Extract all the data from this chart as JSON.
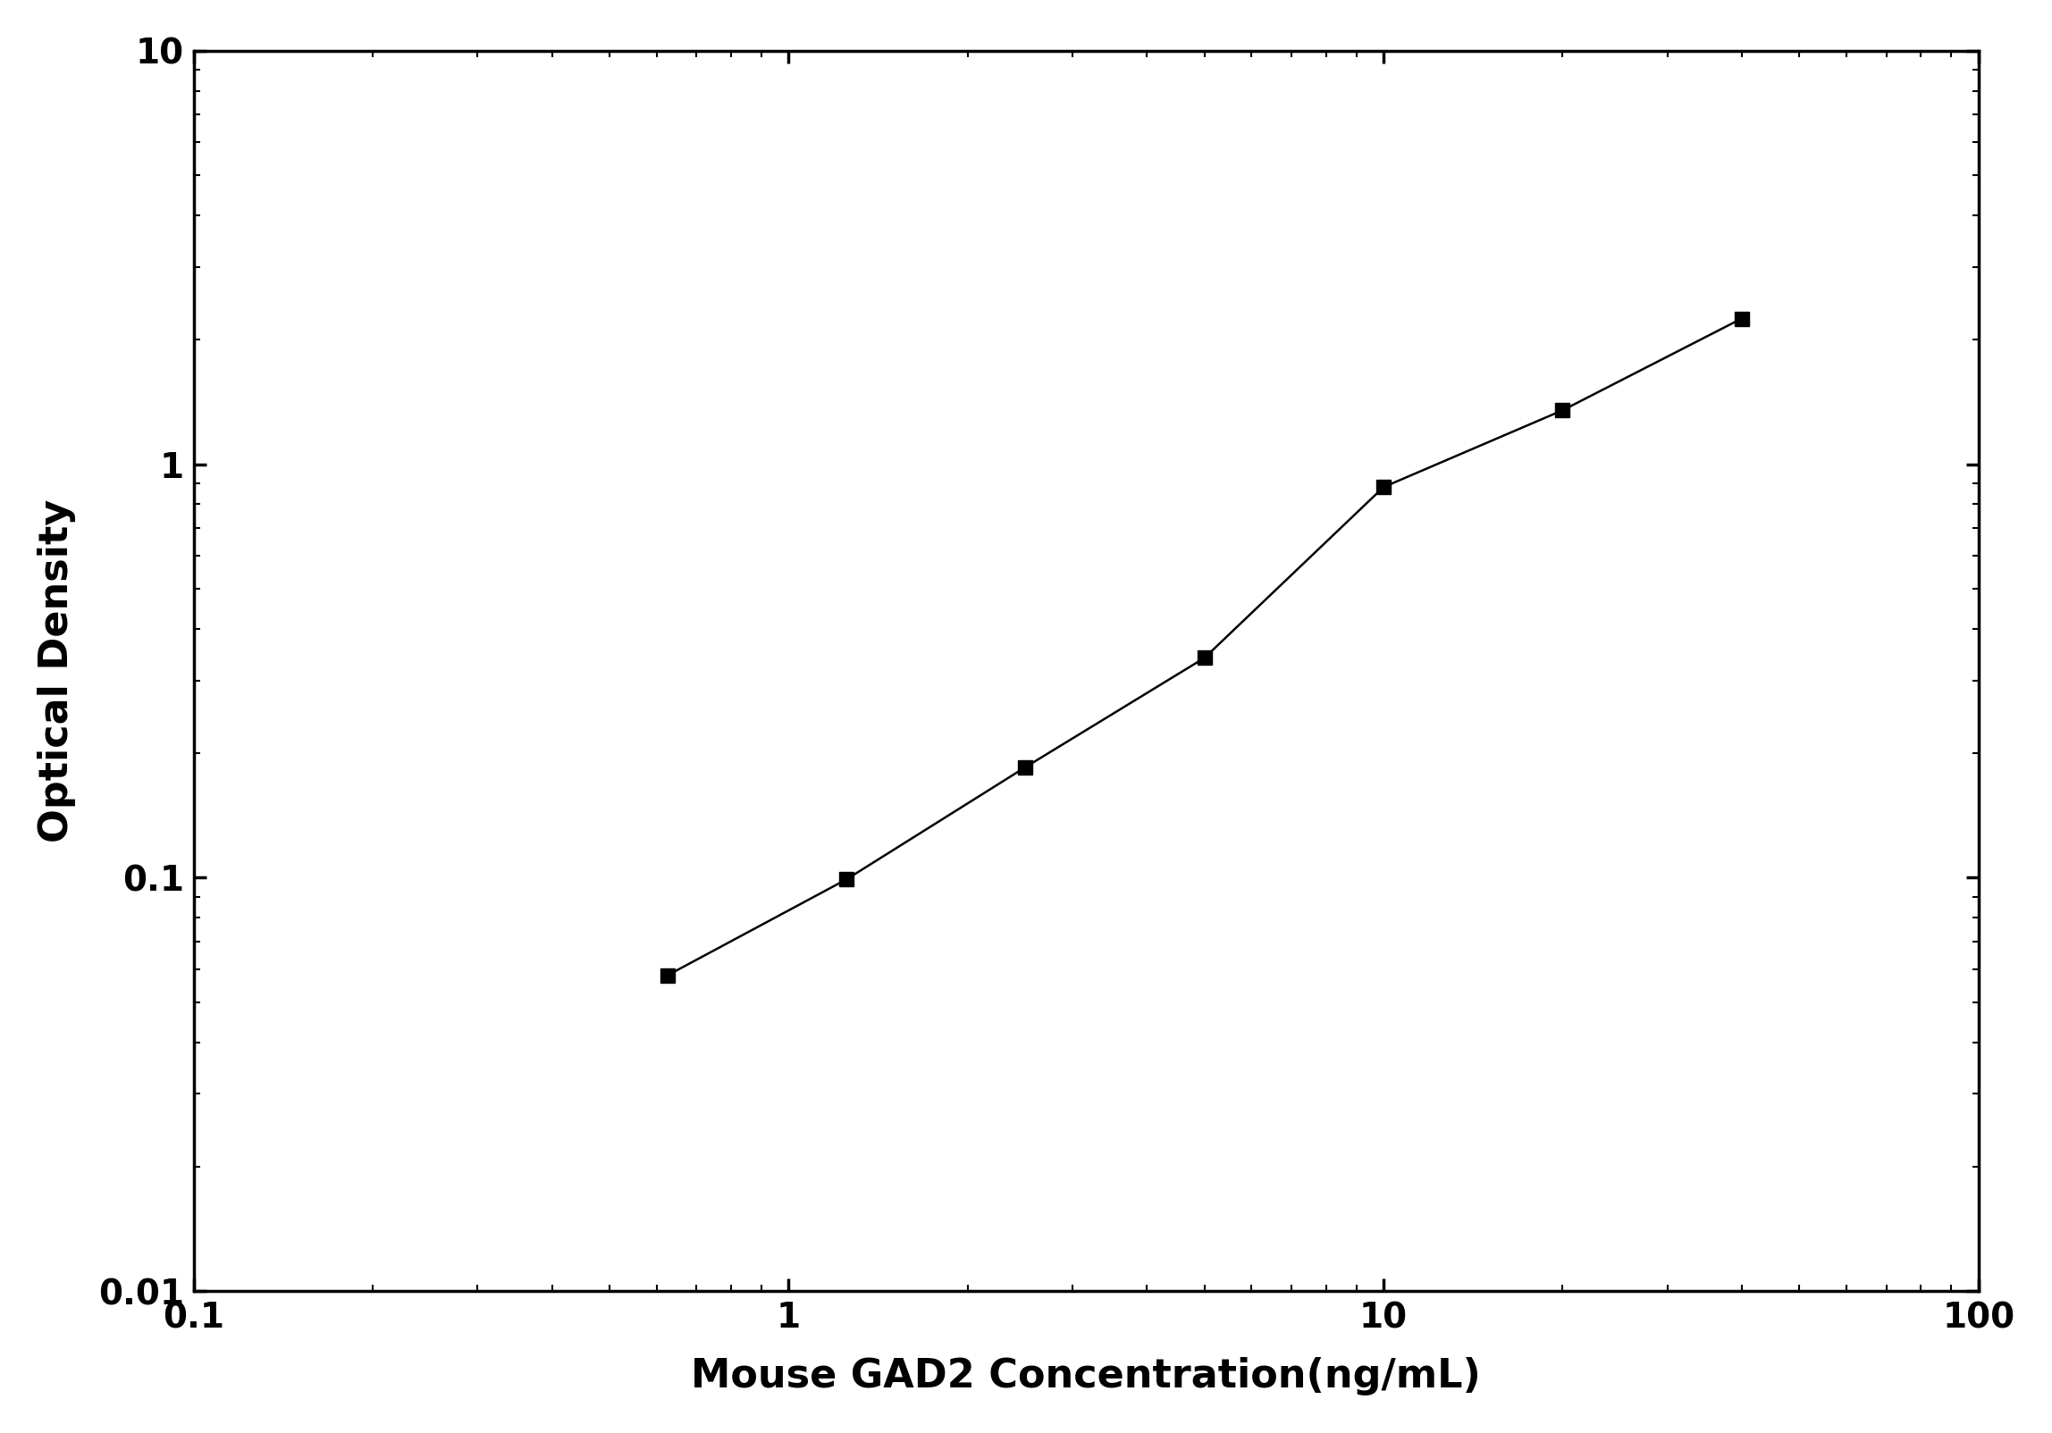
{
  "x": [
    0.625,
    1.25,
    2.5,
    5.0,
    10.0,
    20.0,
    40.0
  ],
  "y": [
    0.058,
    0.099,
    0.185,
    0.34,
    0.88,
    1.35,
    2.25
  ],
  "xlabel": "Mouse GAD2 Concentration(ng/mL)",
  "ylabel": "Optical Density",
  "xlim": [
    0.1,
    100
  ],
  "ylim": [
    0.01,
    10
  ],
  "xticks": [
    0.1,
    1,
    10,
    100
  ],
  "xtick_labels": [
    "0.1",
    "1",
    "10",
    "100"
  ],
  "yticks": [
    0.01,
    0.1,
    1,
    10
  ],
  "ytick_labels": [
    "0.01",
    "0.1",
    "1",
    "10"
  ],
  "line_color": "#000000",
  "marker": "s",
  "marker_color": "#000000",
  "marker_size": 12,
  "line_width": 1.8,
  "xlabel_fontsize": 32,
  "ylabel_fontsize": 32,
  "tick_fontsize": 28,
  "background_color": "#ffffff",
  "spine_linewidth": 2.5
}
